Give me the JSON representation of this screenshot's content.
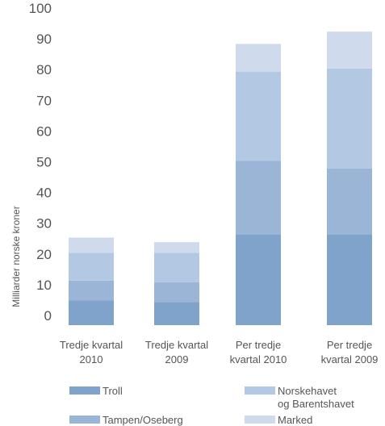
{
  "chart_data": {
    "type": "bar",
    "stacked": true,
    "ylabel": "Milliarder norske kroner",
    "ylim": [
      0,
      100
    ],
    "yticks": [
      0,
      10,
      20,
      30,
      40,
      50,
      60,
      70,
      80,
      90,
      100
    ],
    "categories": [
      [
        "Tredje kvartal",
        "2010"
      ],
      [
        "Tredje kvartal",
        "2009"
      ],
      [
        "Per tredje",
        "kvartal 2010"
      ],
      [
        "Per tredje",
        "kvartal 2009"
      ]
    ],
    "series": [
      {
        "name": "Troll",
        "color": "#7fa3cb",
        "values": [
          8,
          7.5,
          29.5,
          29.5
        ]
      },
      {
        "name": "Tampen/Oseberg",
        "color": "#9ab5d6",
        "values": [
          6.5,
          6.5,
          24,
          21.5
        ]
      },
      {
        "name": "Norskehavet og Barentshavet",
        "color": "#b3c8e2",
        "values": [
          9,
          9.5,
          29,
          32.5
        ]
      },
      {
        "name": "Marked",
        "color": "#cfdbec",
        "values": [
          5,
          3.5,
          9,
          12
        ]
      }
    ],
    "legend": [
      {
        "lines": [
          "Troll"
        ],
        "color": "#7fa3cb"
      },
      {
        "lines": [
          "Norskehavet",
          "og Barentshavet"
        ],
        "color": "#b3c8e2"
      },
      {
        "lines": [
          "Tampen/Oseberg"
        ],
        "color": "#9ab5d6"
      },
      {
        "lines": [
          "Marked"
        ],
        "color": "#cfdbec"
      }
    ],
    "legend_position": "bottom",
    "grid": false
  }
}
